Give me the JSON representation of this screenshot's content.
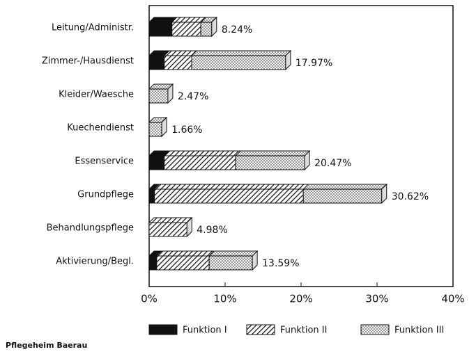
{
  "chart_data": {
    "type": "stacked-barh",
    "categories": [
      "Leitung/Administr.",
      "Zimmer-/Hausdienst",
      "Kleider/Waesche",
      "Kuechendienst",
      "Essenservice",
      "Grundpflege",
      "Behandlungspflege",
      "Aktivierung/Begl."
    ],
    "series": [
      {
        "name": "Funktion I",
        "color": "#111111",
        "fill": "solid",
        "values": [
          3.0,
          2.0,
          0,
          0,
          2.0,
          0.7,
          0,
          1.0
        ]
      },
      {
        "name": "Funktion II",
        "color": "#222222",
        "fill": "hatch",
        "values": [
          3.8,
          3.6,
          0,
          0,
          9.4,
          19.6,
          4.98,
          6.9
        ]
      },
      {
        "name": "Funktion III",
        "color": "#444444",
        "fill": "dots",
        "values": [
          1.44,
          12.37,
          2.47,
          1.66,
          9.07,
          10.32,
          0,
          5.69
        ]
      }
    ],
    "totals": [
      8.24,
      17.97,
      2.47,
      1.66,
      20.47,
      30.62,
      4.98,
      13.59
    ],
    "total_labels": [
      "8.24%",
      "17.97%",
      "2.47%",
      "1.66%",
      "20.47%",
      "30.62%",
      "4.98%",
      "13.59%"
    ],
    "xlim": [
      0,
      40
    ],
    "xticks": [
      {
        "value": 0,
        "label": "0%"
      },
      {
        "value": 10,
        "label": "10%"
      },
      {
        "value": 20,
        "label": "20%"
      },
      {
        "value": 30,
        "label": "30%"
      },
      {
        "value": 40,
        "label": "40%"
      }
    ],
    "grid": false,
    "legend": "bottom",
    "footer": "Pflegeheim Baerau"
  }
}
